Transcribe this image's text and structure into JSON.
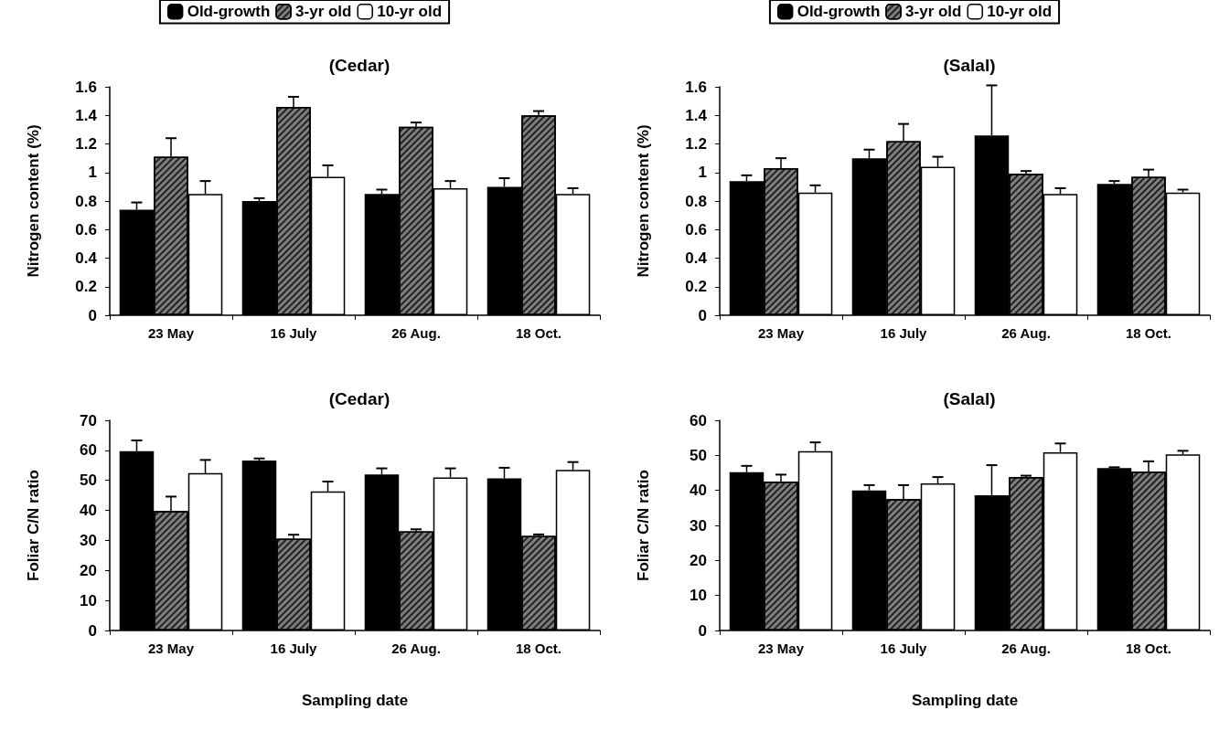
{
  "chart_data": [
    {
      "type": "bar",
      "title": "(Cedar)",
      "ylabel": "Nitrogen content (%)",
      "categories": [
        "23 May",
        "16 July",
        "26 Aug.",
        "18 Oct."
      ],
      "ylim": [
        0,
        1.6
      ],
      "yticks": [
        0,
        0.2,
        0.4,
        0.6,
        0.8,
        1,
        1.2,
        1.4,
        1.6
      ],
      "grid": false,
      "legend": "top",
      "series": [
        {
          "name": "Old-growth",
          "color": "#000000",
          "values": [
            0.74,
            0.8,
            0.85,
            0.9
          ],
          "errors": [
            0.05,
            0.02,
            0.03,
            0.06
          ]
        },
        {
          "name": "3-yr old",
          "color": "#7f7f7f",
          "values": [
            1.11,
            1.46,
            1.32,
            1.4
          ],
          "errors": [
            0.13,
            0.07,
            0.03,
            0.03
          ]
        },
        {
          "name": "10-yr old",
          "color": "#ffffff",
          "values": [
            0.85,
            0.97,
            0.89,
            0.85
          ],
          "errors": [
            0.09,
            0.08,
            0.05,
            0.04
          ]
        }
      ]
    },
    {
      "type": "bar",
      "title": "(Salal)",
      "ylabel": "Nitrogen content (%)",
      "categories": [
        "23 May",
        "16 July",
        "26 Aug.",
        "18 Oct."
      ],
      "ylim": [
        0,
        1.6
      ],
      "yticks": [
        0,
        0.2,
        0.4,
        0.6,
        0.8,
        1,
        1.2,
        1.4,
        1.6
      ],
      "grid": false,
      "legend": "top",
      "series": [
        {
          "name": "Old-growth",
          "color": "#000000",
          "values": [
            0.94,
            1.1,
            1.26,
            0.92
          ],
          "errors": [
            0.04,
            0.06,
            0.35,
            0.02
          ]
        },
        {
          "name": "3-yr old",
          "color": "#7f7f7f",
          "values": [
            1.03,
            1.22,
            0.99,
            0.97
          ],
          "errors": [
            0.07,
            0.12,
            0.02,
            0.05
          ]
        },
        {
          "name": "10-yr old",
          "color": "#ffffff",
          "values": [
            0.86,
            1.04,
            0.85,
            0.86
          ],
          "errors": [
            0.05,
            0.07,
            0.04,
            0.02
          ]
        }
      ]
    },
    {
      "type": "bar",
      "title": "(Cedar)",
      "ylabel": "Foliar C/N ratio",
      "xlabel": "Sampling date",
      "categories": [
        "23 May",
        "16 July",
        "26 Aug.",
        "18 Oct."
      ],
      "ylim": [
        0,
        70
      ],
      "yticks": [
        0,
        10,
        20,
        30,
        40,
        50,
        60,
        70
      ],
      "grid": false,
      "series": [
        {
          "color": "#000000",
          "values": [
            59.7,
            56.6,
            52.0,
            50.7
          ],
          "errors": [
            3.6,
            0.7,
            2.0,
            3.5
          ]
        },
        {
          "color": "#7f7f7f",
          "values": [
            39.8,
            30.6,
            33.0,
            31.5
          ],
          "errors": [
            4.8,
            1.3,
            0.7,
            0.5
          ]
        },
        {
          "color": "#ffffff",
          "values": [
            52.4,
            46.3,
            51.0,
            53.5
          ],
          "errors": [
            4.4,
            3.3,
            3.0,
            2.6
          ]
        }
      ]
    },
    {
      "type": "bar",
      "title": "(Salal)",
      "ylabel": "Foliar C/N ratio",
      "xlabel": "Sampling date",
      "categories": [
        "23 May",
        "16 July",
        "26 Aug.",
        "18 Oct."
      ],
      "ylim": [
        0,
        60
      ],
      "yticks": [
        0,
        10,
        20,
        30,
        40,
        50,
        60
      ],
      "grid": false,
      "series": [
        {
          "color": "#000000",
          "values": [
            45.2,
            40.0,
            38.6,
            46.4
          ],
          "errors": [
            1.8,
            1.5,
            8.6,
            0.2
          ]
        },
        {
          "color": "#7f7f7f",
          "values": [
            42.5,
            37.5,
            43.8,
            45.4
          ],
          "errors": [
            2.0,
            4.0,
            0.4,
            2.9
          ]
        },
        {
          "color": "#ffffff",
          "values": [
            51.2,
            42.0,
            50.9,
            50.3
          ],
          "errors": [
            2.5,
            1.8,
            2.5,
            1.0
          ]
        }
      ]
    }
  ]
}
